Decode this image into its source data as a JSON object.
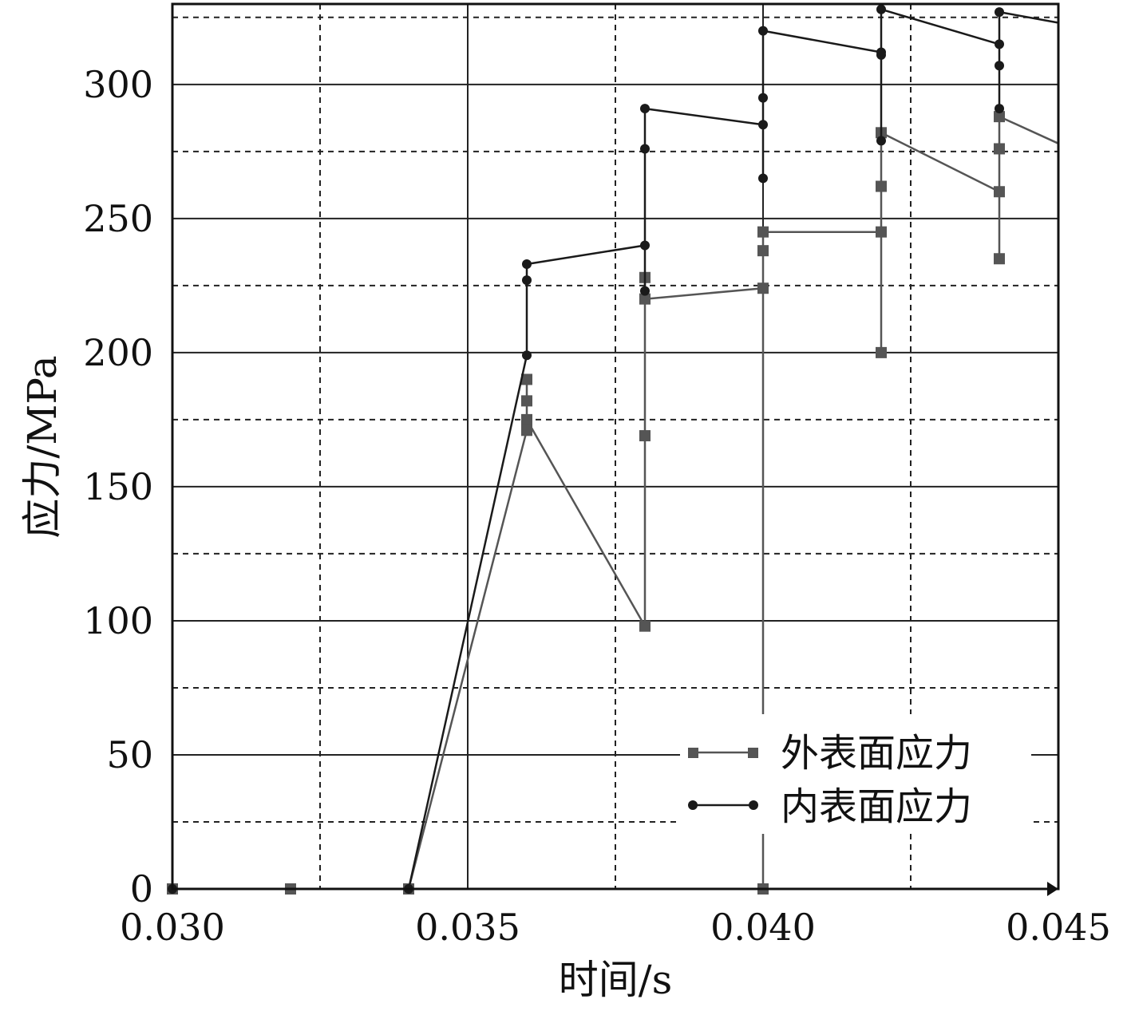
{
  "chart_data": {
    "type": "line",
    "title": "",
    "xlabel": "时间/s",
    "ylabel": "应力/MPa",
    "xlim": [
      0.03,
      0.045
    ],
    "ylim": [
      0,
      330
    ],
    "xticks": [
      0.03,
      0.035,
      0.04,
      0.045
    ],
    "xtick_labels": [
      "0.030",
      "0.035",
      "0.040",
      "0.045"
    ],
    "yticks": [
      0,
      50,
      100,
      150,
      200,
      250,
      300
    ],
    "ytick_labels": [
      "0",
      "50",
      "100",
      "150",
      "200",
      "250",
      "300"
    ],
    "grid": true,
    "legend_position": "lower-right",
    "series": [
      {
        "name": "外表面应力",
        "marker": "square",
        "color": "#555555",
        "x": [
          0.03,
          0.032,
          0.034,
          0.036,
          0.036,
          0.036,
          0.036,
          0.038,
          0.038,
          0.038,
          0.038,
          0.04,
          0.04,
          0.04,
          0.04,
          0.042,
          0.042,
          0.042,
          0.042,
          0.044,
          0.044,
          0.044,
          0.044,
          0.045
        ],
        "y": [
          0,
          0,
          0,
          171,
          182,
          190,
          175,
          98,
          169,
          228,
          220,
          224,
          0,
          238,
          245,
          245,
          200,
          262,
          282,
          260,
          235,
          276,
          288,
          278
        ]
      },
      {
        "name": "内表面应力",
        "marker": "circle",
        "color": "#1a1a1a",
        "x": [
          0.03,
          0.034,
          0.036,
          0.036,
          0.036,
          0.038,
          0.038,
          0.038,
          0.038,
          0.04,
          0.04,
          0.04,
          0.04,
          0.042,
          0.042,
          0.042,
          0.042,
          0.044,
          0.044,
          0.044,
          0.044,
          0.045
        ],
        "y": [
          0,
          0,
          199,
          227,
          233,
          240,
          223,
          276,
          291,
          285,
          265,
          295,
          320,
          312,
          279,
          311,
          328,
          315,
          291,
          307,
          327,
          323
        ]
      }
    ]
  }
}
